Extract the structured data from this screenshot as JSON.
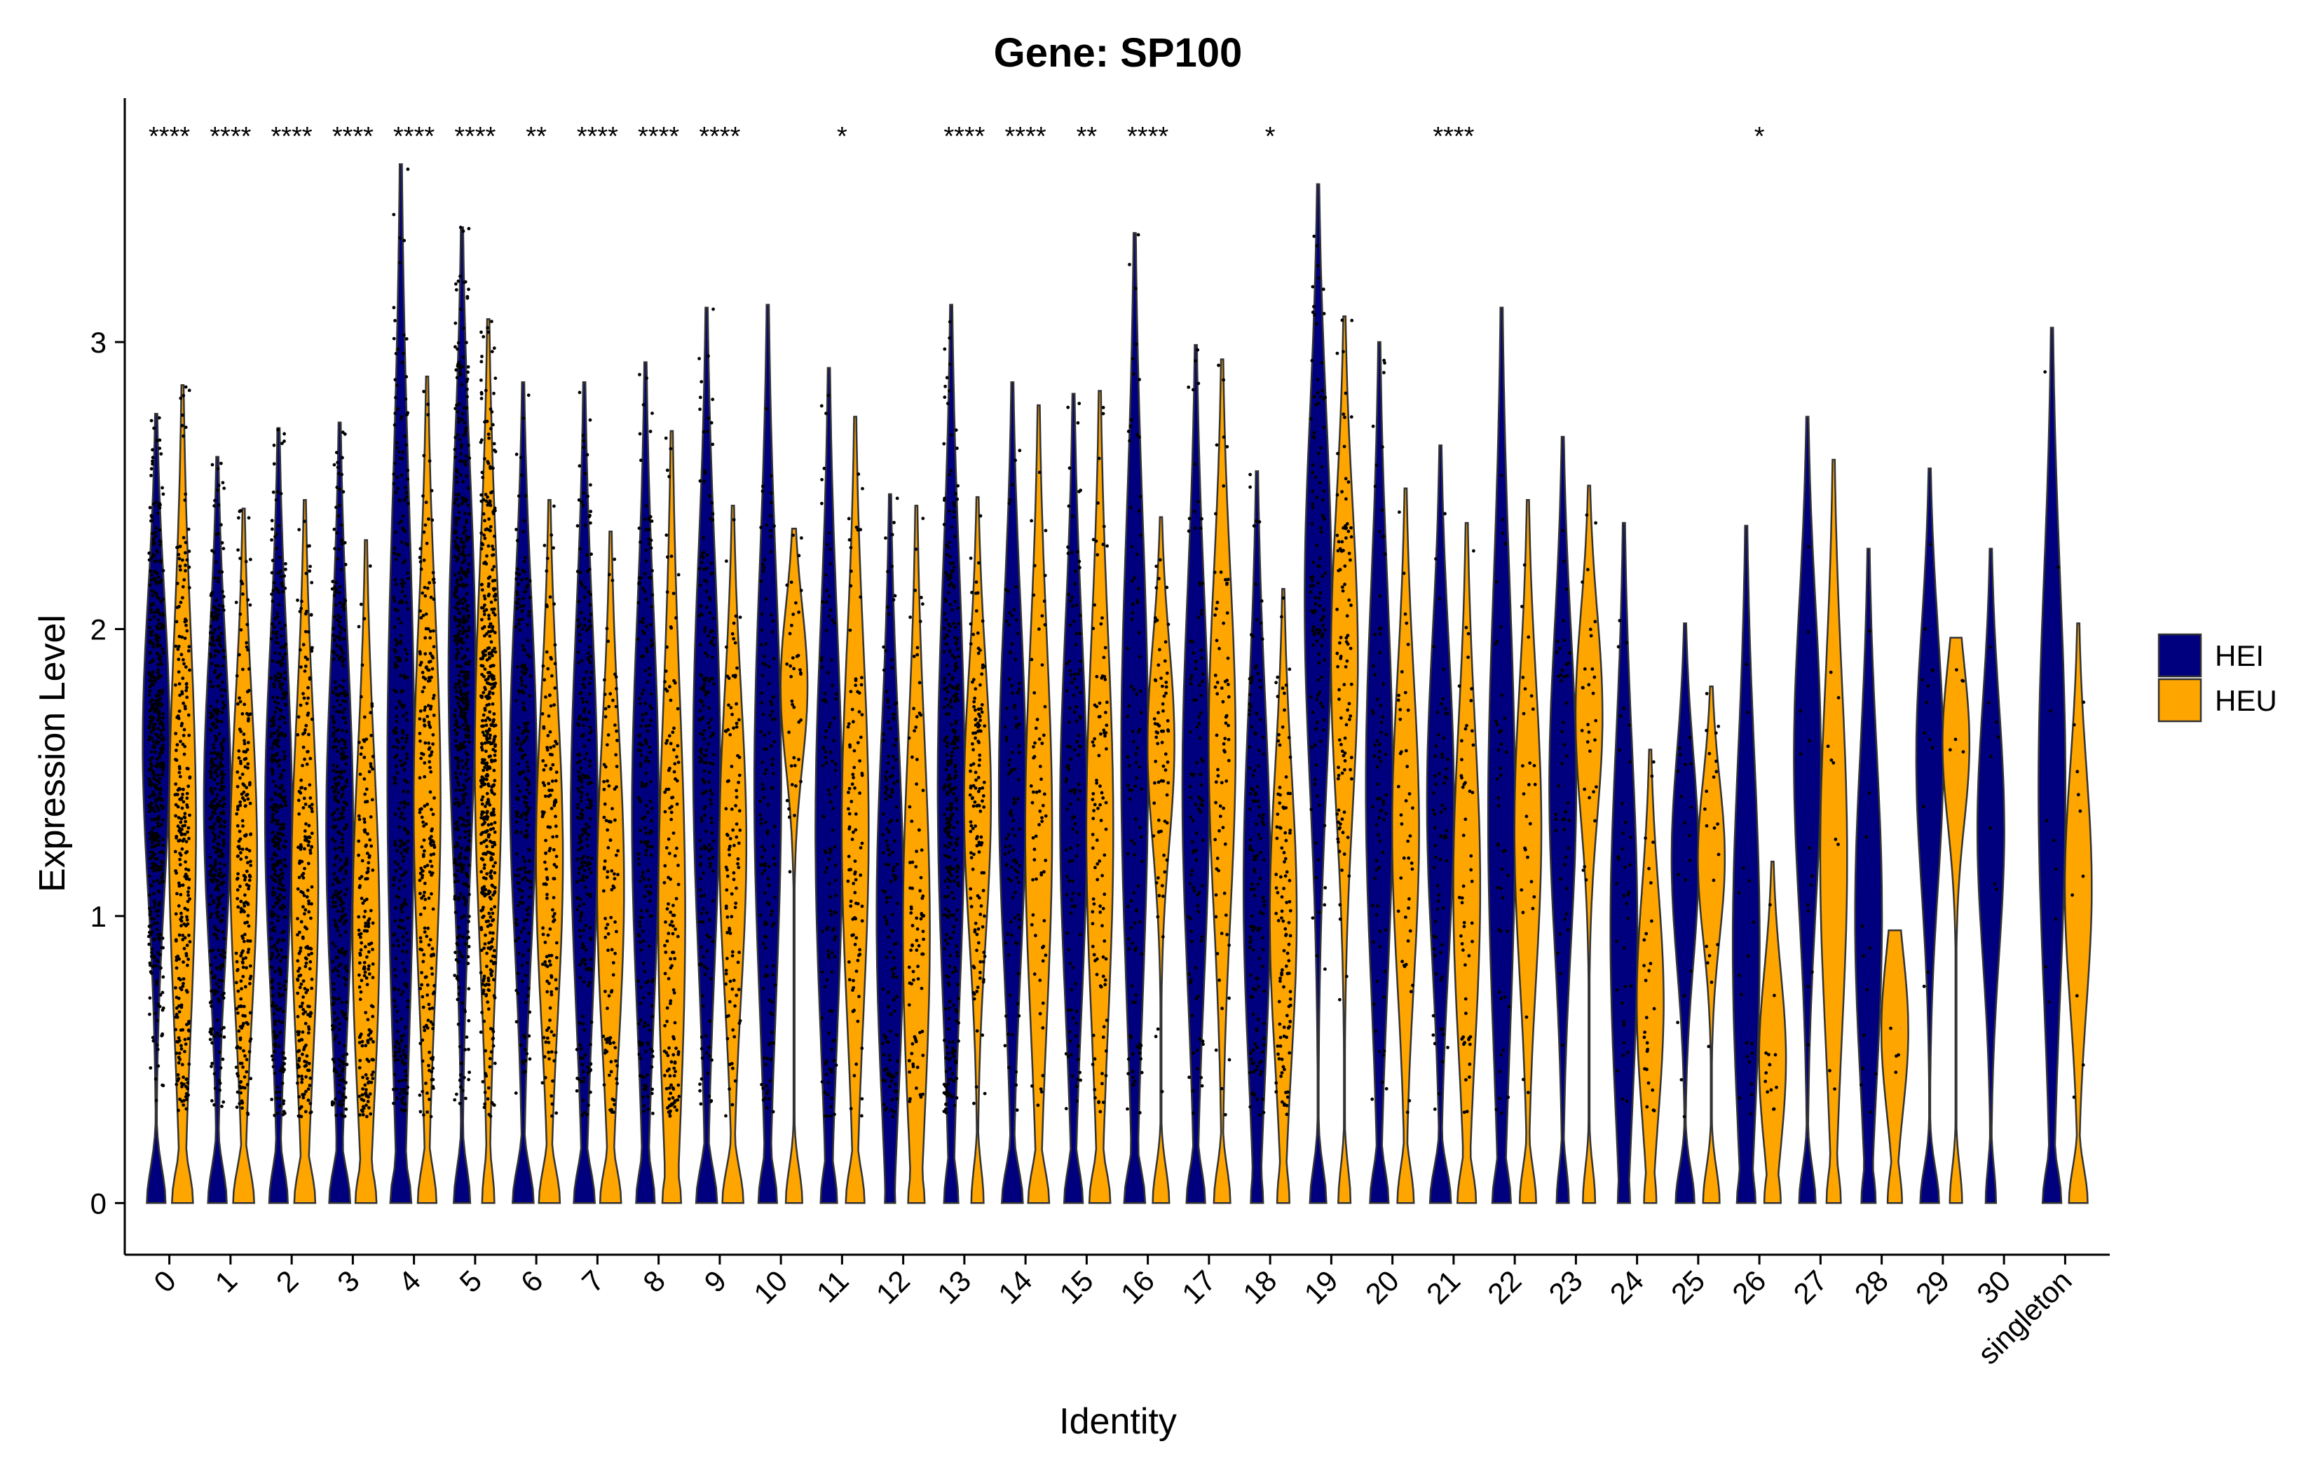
{
  "chart_data": {
    "type": "violin",
    "title": "Gene: SP100",
    "xlabel": "Identity",
    "ylabel": "Expression Level",
    "ylim": [
      -0.18,
      3.85
    ],
    "yticks": [
      0,
      1,
      2,
      3
    ],
    "colors": {
      "HEI": "#00007F",
      "HEU": "#FFA500"
    },
    "legend": {
      "placement": "right",
      "entries": [
        "HEI",
        "HEU"
      ]
    },
    "categories": [
      "0",
      "1",
      "2",
      "3",
      "4",
      "5",
      "6",
      "7",
      "8",
      "9",
      "10",
      "11",
      "12",
      "13",
      "14",
      "15",
      "16",
      "17",
      "18",
      "19",
      "20",
      "21",
      "22",
      "23",
      "24",
      "25",
      "26",
      "27",
      "28",
      "29",
      "30",
      "singleton"
    ],
    "significance": [
      "****",
      "****",
      "****",
      "****",
      "****",
      "****",
      "**",
      "****",
      "****",
      "****",
      "",
      "*",
      "",
      "****",
      "****",
      "**",
      "****",
      "",
      "*",
      "",
      "",
      "****",
      "",
      "",
      "",
      "",
      "*",
      "",
      "",
      "",
      "",
      ""
    ],
    "series": [
      {
        "name": "HEI",
        "max": [
          2.75,
          2.6,
          2.7,
          2.72,
          3.62,
          3.4,
          2.86,
          2.86,
          2.93,
          3.12,
          3.13,
          2.91,
          2.47,
          3.13,
          2.86,
          2.82,
          3.38,
          2.99,
          2.55,
          3.55,
          3.0,
          2.64,
          3.12,
          2.67,
          2.37,
          2.02,
          2.36,
          2.74,
          2.28,
          2.56,
          2.28,
          3.05
        ],
        "mode": [
          1.6,
          1.4,
          1.35,
          1.3,
          1.5,
          1.85,
          1.5,
          1.35,
          1.35,
          1.55,
          1.45,
          1.3,
          1.0,
          1.45,
          1.45,
          1.35,
          1.55,
          1.45,
          1.1,
          2.1,
          1.45,
          1.4,
          1.35,
          1.45,
          0.95,
          1.2,
          0.9,
          1.55,
          1.0,
          1.55,
          1.3,
          1.45
        ],
        "zero_share": [
          0.5,
          0.5,
          0.5,
          0.55,
          0.55,
          0.45,
          0.55,
          0.55,
          0.5,
          0.55,
          0.5,
          0.45,
          0.3,
          0.4,
          0.55,
          0.5,
          0.55,
          0.5,
          0.35,
          0.45,
          0.5,
          0.55,
          0.5,
          0.35,
          0.35,
          0.5,
          0.5,
          0.45,
          0.4,
          0.5,
          0.3,
          0.5
        ],
        "points": [
          900,
          700,
          700,
          700,
          600,
          900,
          500,
          450,
          400,
          400,
          250,
          200,
          200,
          500,
          200,
          220,
          200,
          200,
          200,
          200,
          140,
          140,
          80,
          70,
          60,
          40,
          30,
          20,
          15,
          20,
          10,
          20
        ]
      },
      {
        "name": "HEU",
        "max": [
          2.85,
          2.42,
          2.45,
          2.31,
          2.88,
          3.08,
          2.45,
          2.34,
          2.69,
          2.43,
          2.35,
          2.74,
          2.43,
          2.46,
          2.78,
          2.83,
          2.39,
          2.94,
          2.14,
          3.09,
          2.49,
          2.37,
          2.45,
          2.5,
          1.58,
          1.8,
          1.19,
          2.59,
          0.95,
          1.97,
          null,
          2.02
        ],
        "mode": [
          1.3,
          1.2,
          1.1,
          0.95,
          1.4,
          1.55,
          1.2,
          1.1,
          1.0,
          1.25,
          1.8,
          1.3,
          0.95,
          1.4,
          1.3,
          1.3,
          1.6,
          1.6,
          1.0,
          1.9,
          1.3,
          1.1,
          1.3,
          1.7,
          0.7,
          1.2,
          0.5,
          1.2,
          0.6,
          1.6,
          null,
          1.1
        ],
        "zero_share": [
          0.55,
          0.55,
          0.55,
          0.55,
          0.5,
          0.35,
          0.55,
          0.55,
          0.5,
          0.55,
          0.45,
          0.5,
          0.45,
          0.35,
          0.55,
          0.55,
          0.45,
          0.45,
          0.35,
          0.35,
          0.45,
          0.5,
          0.45,
          0.35,
          0.35,
          0.45,
          0.45,
          0.4,
          0.4,
          0.35,
          null,
          0.5
        ],
        "points": [
          600,
          450,
          450,
          350,
          400,
          700,
          300,
          250,
          250,
          200,
          60,
          150,
          160,
          200,
          150,
          200,
          120,
          150,
          150,
          150,
          80,
          80,
          50,
          40,
          40,
          30,
          20,
          10,
          5,
          10,
          0,
          15
        ]
      }
    ]
  }
}
